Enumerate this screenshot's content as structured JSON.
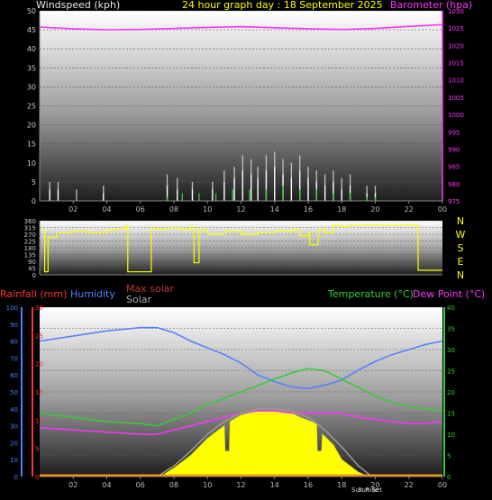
{
  "header": {
    "left_label": "Windspeed (kph)",
    "title": "24 hour graph day : 18 September 2025",
    "right_label": "Barometer (hpa)"
  },
  "lower_labels": {
    "rainfall": "Rainfall (mm)",
    "humidity": "Humidity",
    "max_solar": "Max solar",
    "solar": "Solar",
    "temperature": "Temperature (°C)",
    "dew_point": "Dew Point (°C)",
    "sunrise": "Sun Rise",
    "sunset": "Sun Set"
  },
  "compass": [
    "N",
    "W",
    "S",
    "E",
    "N"
  ],
  "x_ticks": [
    "02",
    "04",
    "06",
    "08",
    "10",
    "12",
    "14",
    "16",
    "18",
    "20",
    "22",
    "00"
  ],
  "colors": {
    "wind": "#ffffff",
    "gust": "#c0c0c0",
    "wind_avg": "#33cc33",
    "barometer": "#ff33ff",
    "direction": "#ffff00",
    "humidity": "#4f7fff",
    "temperature": "#33cc33",
    "dewpoint": "#ff33ff",
    "solar": "#ffff00",
    "max_solar": "#999999",
    "rain_axis": "#ff3333"
  },
  "chart_data": [
    {
      "type": "line",
      "title": "24 hour graph day : 18 September 2025",
      "x_unit": "hour",
      "xlim": [
        0,
        24
      ],
      "y_left": {
        "label": "Windspeed (kph)",
        "lim": [
          0,
          50
        ],
        "ticks": [
          0,
          5,
          10,
          15,
          20,
          25,
          30,
          35,
          40,
          45,
          50
        ]
      },
      "y_right": {
        "label": "Barometer (hpa)",
        "lim": [
          975,
          1030
        ],
        "ticks": [
          975,
          980,
          985,
          990,
          995,
          1000,
          1005,
          1010,
          1015,
          1020,
          1025,
          1030
        ]
      },
      "series": [
        {
          "name": "Barometer (hpa)",
          "axis": "right",
          "x": [
            0,
            2,
            4,
            6,
            8,
            10,
            12,
            14,
            16,
            18,
            20,
            22,
            24
          ],
          "values": [
            1025.3,
            1024.8,
            1024.5,
            1024.6,
            1024.9,
            1025.2,
            1025.4,
            1025.1,
            1024.8,
            1024.6,
            1024.9,
            1025.5,
            1026.0
          ]
        },
        {
          "axis": "left",
          "style": "gust",
          "x": [
            0.6,
            1.1,
            2.2,
            3.8,
            7.6,
            8.2,
            9.1,
            10.3,
            11.0,
            11.6,
            12.1,
            12.6,
            13.0,
            13.5,
            14.0,
            14.5,
            15.0,
            15.5,
            16.0,
            16.5,
            17.0,
            17.5,
            18.0,
            18.5,
            19.5,
            20.0
          ],
          "values": [
            5,
            5,
            3,
            4,
            7,
            6,
            5,
            5,
            8,
            9,
            12,
            11,
            9,
            12,
            13,
            11,
            10,
            12,
            9,
            8,
            7,
            8,
            6,
            7,
            4,
            4
          ]
        },
        {
          "axis": "left",
          "style": "wind",
          "x": [
            0.6,
            1.1,
            3.8,
            7.6,
            8.2,
            9.1,
            10.3,
            11.0,
            11.6,
            12.1,
            12.6,
            13.0,
            13.5,
            14.0,
            14.5,
            15.0,
            15.5,
            16.0,
            16.5,
            17.0,
            17.5,
            18.0,
            18.5,
            19.5,
            20.0
          ],
          "values": [
            3,
            3,
            2,
            4,
            3,
            3,
            3,
            5,
            6,
            8,
            7,
            6,
            8,
            9,
            7,
            6,
            8,
            6,
            5,
            4,
            5,
            3,
            4,
            2,
            2
          ]
        },
        {
          "axis": "left",
          "style": "wind_avg",
          "x": [
            7.6,
            8.5,
            9.5,
            10.5,
            11.5,
            12.5,
            13.5,
            14.5,
            15.5,
            16.5,
            17.5,
            18.5,
            19.5,
            20.0
          ],
          "values": [
            1,
            2,
            2,
            2,
            3,
            3,
            3,
            4,
            3,
            3,
            2,
            2,
            1,
            1
          ]
        }
      ]
    },
    {
      "type": "line",
      "x_unit": "hour",
      "xlim": [
        0,
        24
      ],
      "y_left": {
        "lim": [
          0,
          360
        ],
        "ticks": [
          0,
          45,
          90,
          135,
          180,
          225,
          270,
          315,
          360
        ]
      },
      "series": [
        {
          "axis": "left",
          "x": [
            0.1,
            0.3,
            0.5,
            1.0,
            2.0,
            3.0,
            4.0,
            5.0,
            5.2,
            5.25,
            6.6,
            6.65,
            7.0,
            7.5,
            8.5,
            9.0,
            9.2,
            9.5,
            10.0,
            11.0,
            12.0,
            13.0,
            14.0,
            15.0,
            15.5,
            16.0,
            16.1,
            16.6,
            17.0,
            17.5,
            18.0,
            18.5,
            20.0,
            21.0,
            22.0,
            22.5,
            22.55,
            23.0,
            24.0
          ],
          "values": [
            300,
            20,
            250,
            280,
            290,
            280,
            300,
            310,
            330,
            20,
            20,
            310,
            300,
            310,
            300,
            320,
            80,
            300,
            270,
            290,
            270,
            280,
            290,
            300,
            260,
            280,
            200,
            300,
            280,
            330,
            320,
            330,
            330,
            330,
            330,
            330,
            30,
            30,
            30
          ]
        }
      ]
    },
    {
      "type": "line",
      "x_unit": "hour",
      "xlim": [
        0,
        24
      ],
      "y_left_rain": {
        "label": "Rainfall (mm)",
        "lim": [
          0,
          30
        ],
        "ticks": [
          0,
          5,
          10,
          15,
          20,
          25,
          30
        ]
      },
      "y_left_humidity": {
        "label": "Humidity",
        "lim": [
          0,
          100
        ],
        "ticks": [
          0,
          10,
          20,
          30,
          40,
          50,
          60,
          70,
          80,
          90,
          100
        ]
      },
      "y_right": {
        "label": "Temperature (°C)",
        "lim": [
          0,
          40
        ],
        "ticks": [
          0,
          5,
          10,
          15,
          20,
          25,
          30,
          35,
          40
        ]
      },
      "series": [
        {
          "name": "Humidity",
          "axis": "humidity",
          "x": [
            0,
            2,
            4,
            6,
            7,
            8,
            9,
            10,
            11,
            12,
            13,
            14,
            15,
            16,
            17,
            18,
            19,
            20,
            21,
            22,
            23,
            24
          ],
          "values": [
            80,
            83,
            86,
            88,
            88,
            85,
            80,
            76,
            72,
            67,
            60,
            56,
            53,
            52,
            54,
            57,
            63,
            68,
            72,
            75,
            78,
            80
          ]
        },
        {
          "name": "Temperature (°C)",
          "axis": "temp",
          "x": [
            0,
            2,
            4,
            6,
            7,
            8,
            9,
            10,
            11,
            12,
            13,
            14,
            15,
            16,
            17,
            18,
            19,
            20,
            21,
            22,
            23,
            24
          ],
          "values": [
            15,
            14,
            13,
            12.5,
            12,
            13.5,
            15,
            17,
            18.5,
            20,
            21.5,
            23,
            24.5,
            25.5,
            25,
            23,
            21,
            19,
            17.5,
            16.5,
            16,
            15.5
          ]
        },
        {
          "name": "Dew Point (°C)",
          "axis": "temp",
          "x": [
            0,
            2,
            4,
            6,
            7,
            8,
            9,
            10,
            11,
            12,
            13,
            14,
            15,
            16,
            17,
            18,
            19,
            20,
            21,
            22,
            23,
            24
          ],
          "values": [
            11.5,
            11,
            10.5,
            10,
            10,
            11,
            12,
            13,
            14,
            15,
            15.5,
            15.5,
            15,
            15,
            15,
            15,
            14,
            13.5,
            13,
            12.5,
            12.5,
            13
          ]
        },
        {
          "name": "Solar",
          "axis": "temp",
          "style": "area",
          "x": [
            7.2,
            8,
            9,
            10,
            10.5,
            11.0,
            11.05,
            11.3,
            11.35,
            12,
            13,
            14,
            15,
            15.5,
            16.5,
            16.55,
            16.8,
            16.85,
            17.5,
            18,
            19,
            19.6
          ],
          "values": [
            0,
            2,
            5,
            9,
            10.5,
            12,
            6,
            6,
            13,
            14.5,
            15.5,
            15.5,
            15,
            14,
            12.5,
            6,
            6,
            10,
            7.5,
            4,
            1,
            0
          ]
        },
        {
          "name": "Max solar",
          "axis": "temp",
          "x": [
            7.0,
            8,
            9,
            10,
            11,
            12,
            13,
            14,
            15,
            16,
            17,
            18,
            19,
            19.8
          ],
          "values": [
            0,
            2.5,
            6,
            10,
            13,
            15,
            16,
            16,
            15.5,
            14,
            11,
            7,
            2.5,
            0
          ]
        }
      ]
    }
  ]
}
